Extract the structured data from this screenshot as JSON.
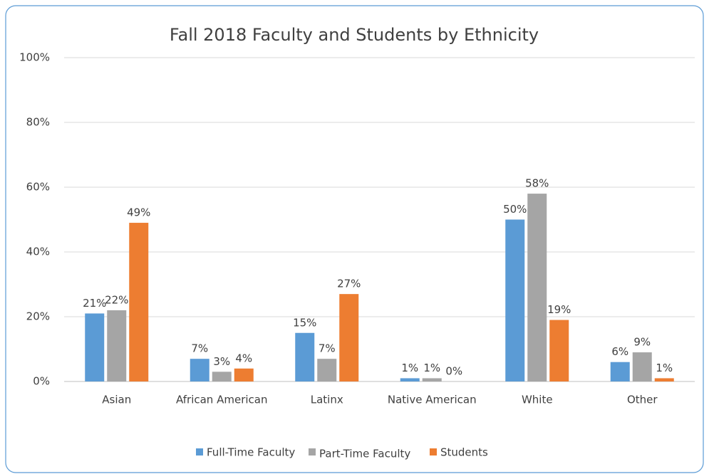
{
  "chart_data": {
    "type": "bar",
    "title": "Fall 2018 Faculty and Students by Ethnicity",
    "categories": [
      "Asian",
      "African American",
      "Latinx",
      "Native American",
      "White",
      "Other"
    ],
    "series": [
      {
        "name": "Full-Time Faculty",
        "color": "#5b9bd5",
        "values": [
          21,
          7,
          15,
          1,
          50,
          6
        ],
        "value_labels": [
          "21%",
          "7%",
          "15%",
          "1%",
          "50%",
          "6%"
        ]
      },
      {
        "name": "Part-Time Faculty",
        "color": "#a5a5a5",
        "values": [
          22,
          3,
          7,
          1,
          58,
          9
        ],
        "value_labels": [
          "22%",
          "3%",
          "7%",
          "1%",
          "58%",
          "9%"
        ]
      },
      {
        "name": "Students",
        "color": "#ed7d31",
        "values": [
          49,
          4,
          27,
          0,
          19,
          1
        ],
        "value_labels": [
          "49%",
          "4%",
          "27%",
          "0%",
          "19%",
          "1%"
        ]
      }
    ],
    "ylim": [
      0,
      100
    ],
    "yticks": [
      {
        "value": 0,
        "label": "0%"
      },
      {
        "value": 20,
        "label": "20%"
      },
      {
        "value": 40,
        "label": "40%"
      },
      {
        "value": 60,
        "label": "60%"
      },
      {
        "value": 80,
        "label": "80%"
      },
      {
        "value": 100,
        "label": "100%"
      }
    ],
    "grid": true,
    "legend": "bottom"
  }
}
